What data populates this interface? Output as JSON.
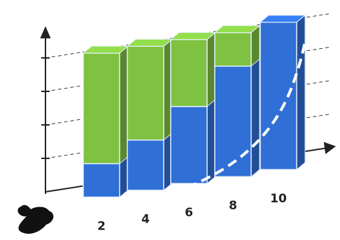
{
  "chart_data": {
    "type": "bar",
    "stacked": true,
    "categories": [
      "2",
      "4",
      "6",
      "8",
      "10"
    ],
    "series": [
      {
        "color": "#2f6fd6",
        "values": [
          1.0,
          1.5,
          2.3,
          3.3,
          4.4
        ]
      },
      {
        "color": "#7fc241",
        "values": [
          3.3,
          2.8,
          2.0,
          1.0,
          0
        ]
      }
    ],
    "ylim": [
      0,
      4.5
    ],
    "yticks": [
      1,
      2,
      3,
      4
    ],
    "grid": true
  }
}
